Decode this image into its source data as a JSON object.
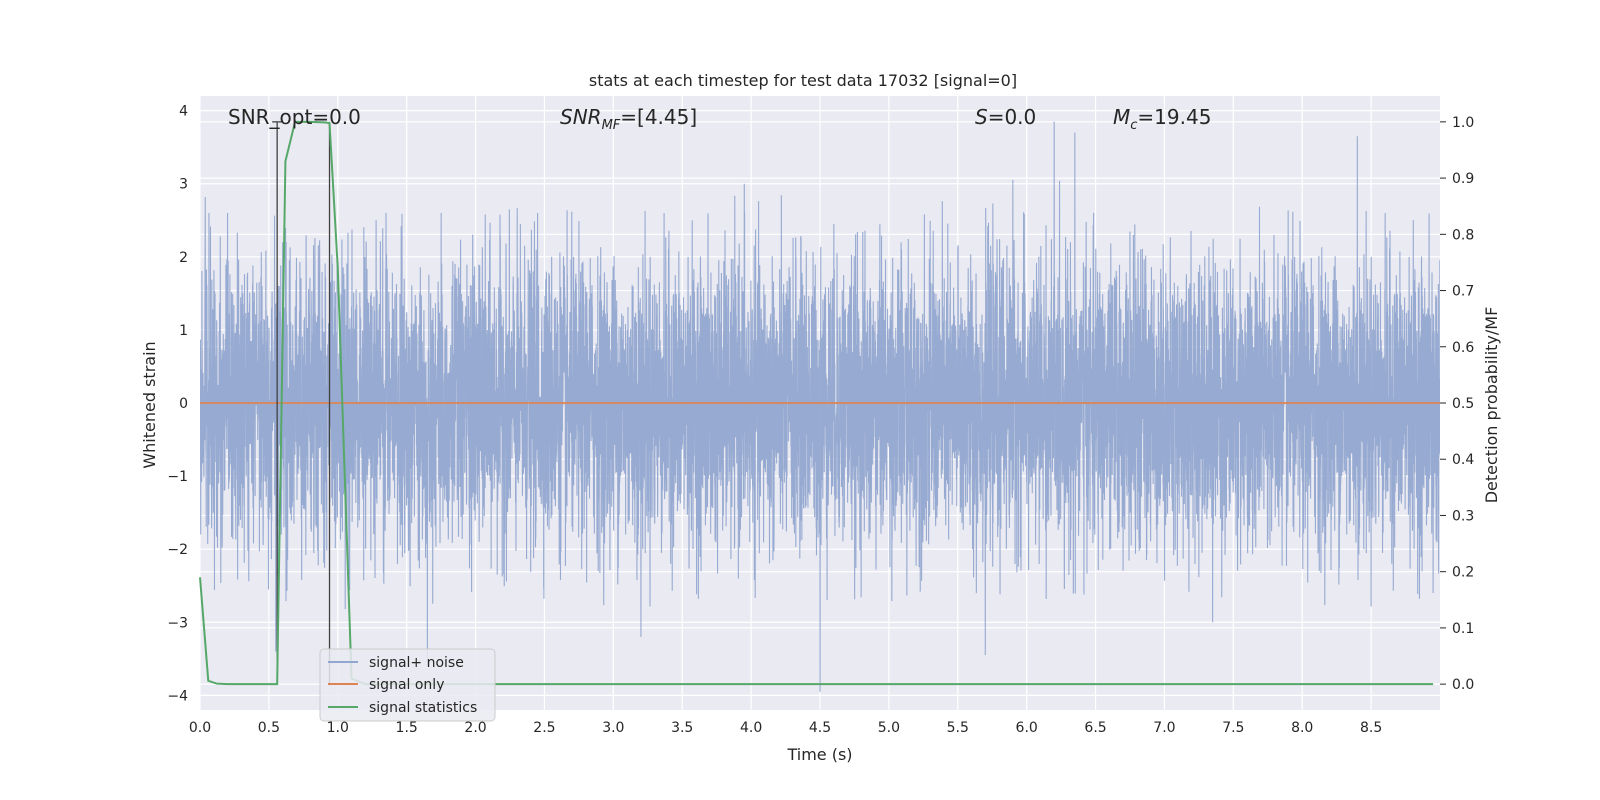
{
  "chart_data": {
    "type": "line",
    "title": "stats at each timestep for test data 17032 [signal=0]",
    "xlabel": "Time (s)",
    "ylabel": "Whitened strain",
    "y2label": "Detection probability/MF",
    "xlim": [
      0.0,
      9.0
    ],
    "ylim": [
      -4.2,
      4.2
    ],
    "y2lim": [
      -0.046,
      1.046
    ],
    "x_ticks": [
      "0.0",
      "0.5",
      "1.0",
      "1.5",
      "2.0",
      "2.5",
      "3.0",
      "3.5",
      "4.0",
      "4.5",
      "5.0",
      "5.5",
      "6.0",
      "6.5",
      "7.0",
      "7.5",
      "8.0",
      "8.5"
    ],
    "y_ticks": [
      "−4",
      "−3",
      "−2",
      "−1",
      "0",
      "1",
      "2",
      "3",
      "4"
    ],
    "y2_ticks": [
      "0.0",
      "0.1",
      "0.2",
      "0.3",
      "0.4",
      "0.5",
      "0.6",
      "0.7",
      "0.8",
      "0.9",
      "1.0"
    ],
    "grid": true,
    "legend_position": "lower-left",
    "annotations": {
      "snr_opt": "SNR_opt=0.0",
      "snr_mf_main": "SNR",
      "snr_mf_sub": "MF",
      "snr_mf_value": "=[4.45]",
      "s_main": "S",
      "s_value": "=0.0",
      "mc_main": "M",
      "mc_sub": "c",
      "mc_value": "=19.45"
    },
    "series": [
      {
        "name": "signal+ noise",
        "color": "#92a6cf",
        "axis": "left",
        "representation": "dense whitened noise band approximately ±1.5 with peaks reaching about ±3.8",
        "peaks": [
          [
            0.2,
            2.6
          ],
          [
            0.55,
            -3.4
          ],
          [
            0.6,
            2.2
          ],
          [
            1.35,
            2.6
          ],
          [
            1.65,
            -3.6
          ],
          [
            1.75,
            2.6
          ],
          [
            2.45,
            2.6
          ],
          [
            3.2,
            -3.2
          ],
          [
            3.95,
            3.0
          ],
          [
            4.5,
            -3.95
          ],
          [
            5.7,
            -3.45
          ],
          [
            5.9,
            3.05
          ],
          [
            6.2,
            3.85
          ],
          [
            6.35,
            3.7
          ],
          [
            7.35,
            -3.0
          ],
          [
            8.4,
            3.65
          ],
          [
            8.95,
            -2.6
          ]
        ]
      },
      {
        "name": "signal only",
        "color": "#dd8452",
        "axis": "left",
        "x": [
          0.0,
          9.0
        ],
        "y": [
          0.0,
          0.0
        ]
      },
      {
        "name": "signal statistics",
        "color": "#55a868",
        "axis": "right",
        "x": [
          0.0,
          0.06,
          0.12,
          0.2,
          0.3,
          0.4,
          0.5,
          0.56,
          0.62,
          0.69,
          0.75,
          0.8,
          0.9,
          0.94,
          1.0,
          1.06,
          1.1,
          1.2,
          2.0,
          3.0,
          4.0,
          5.0,
          6.0,
          7.0,
          8.0,
          8.95
        ],
        "y": [
          0.19,
          0.006,
          0.001,
          0.0,
          0.0,
          0.0,
          0.0,
          0.0,
          0.93,
          1.0,
          1.0,
          1.0,
          0.999,
          0.998,
          0.74,
          0.3,
          0.01,
          0.0,
          0.0,
          0.0,
          0.0,
          0.0,
          0.0,
          0.0,
          0.0,
          0.0
        ]
      }
    ],
    "vertical_markers": {
      "color": "#404040",
      "x": [
        0.56,
        0.94
      ]
    }
  }
}
